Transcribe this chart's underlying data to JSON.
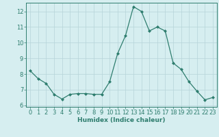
{
  "x": [
    0,
    1,
    2,
    3,
    4,
    5,
    6,
    7,
    8,
    9,
    10,
    11,
    12,
    13,
    14,
    15,
    16,
    17,
    18,
    19,
    20,
    21,
    22,
    23
  ],
  "y": [
    8.2,
    7.7,
    7.4,
    6.7,
    6.4,
    6.7,
    6.75,
    6.75,
    6.7,
    6.7,
    7.5,
    9.3,
    10.45,
    12.3,
    12.0,
    10.75,
    11.0,
    10.75,
    8.7,
    8.3,
    7.5,
    6.9,
    6.35,
    6.5
  ],
  "line_color": "#2e7d6e",
  "marker": "D",
  "marker_size": 2.0,
  "bg_color": "#d6eef0",
  "grid_color": "#b5d4d8",
  "xlabel": "Humidex (Indice chaleur)",
  "xlim": [
    -0.5,
    23.5
  ],
  "ylim": [
    5.9,
    12.55
  ],
  "yticks": [
    6,
    7,
    8,
    9,
    10,
    11,
    12
  ],
  "xticks": [
    0,
    1,
    2,
    3,
    4,
    5,
    6,
    7,
    8,
    9,
    10,
    11,
    12,
    13,
    14,
    15,
    16,
    17,
    18,
    19,
    20,
    21,
    22,
    23
  ],
  "xlabel_fontsize": 6.5,
  "tick_fontsize": 6.0
}
